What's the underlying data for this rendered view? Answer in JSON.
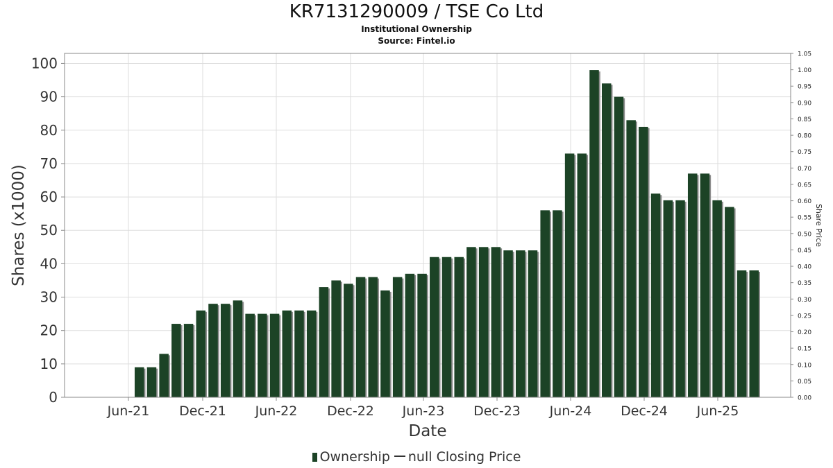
{
  "title": "KR7131290009 / TSE Co Ltd",
  "subtitle": "Institutional Ownership",
  "source": "Source: Fintel.io",
  "colors": {
    "bar": "#1c4326",
    "bar_shadow": "#8c8c8c",
    "grid": "#dddddd",
    "axis": "#888888"
  },
  "legend": {
    "ownership": "Ownership",
    "price": "null Closing Price"
  },
  "chart_data": {
    "type": "bar",
    "title": "KR7131290009 / TSE Co Ltd",
    "xlabel": "Date",
    "ylabel": "Shares (x1000)",
    "y2label": "Share Price",
    "ylim": [
      0,
      103
    ],
    "y2lim": [
      0,
      1.05
    ],
    "grid": true,
    "legend_position": "bottom",
    "yticks": [
      0,
      10,
      20,
      30,
      40,
      50,
      60,
      70,
      80,
      90,
      100
    ],
    "y2ticks": [
      "0.00",
      "0.05",
      "0.10",
      "0.15",
      "0.20",
      "0.25",
      "0.30",
      "0.35",
      "0.40",
      "0.45",
      "0.50",
      "0.55",
      "0.60",
      "0.65",
      "0.70",
      "0.75",
      "0.80",
      "0.85",
      "0.90",
      "0.95",
      "1.00",
      "1.05"
    ],
    "xticks": [
      "Jun-21",
      "Dec-21",
      "Jun-22",
      "Dec-22",
      "Jun-23",
      "Dec-23",
      "Jun-24",
      "Dec-24",
      "Jun-25"
    ],
    "series": [
      {
        "name": "Ownership",
        "values": [
          9,
          9,
          13,
          22,
          22,
          26,
          28,
          28,
          29,
          25,
          25,
          25,
          26,
          26,
          26,
          33,
          35,
          34,
          36,
          36,
          32,
          36,
          37,
          37,
          42,
          42,
          42,
          45,
          45,
          45,
          44,
          44,
          44,
          56,
          56,
          73,
          73,
          98,
          94,
          90,
          83,
          81,
          61,
          59,
          59,
          67,
          67,
          59,
          57,
          38,
          38
        ]
      }
    ]
  }
}
